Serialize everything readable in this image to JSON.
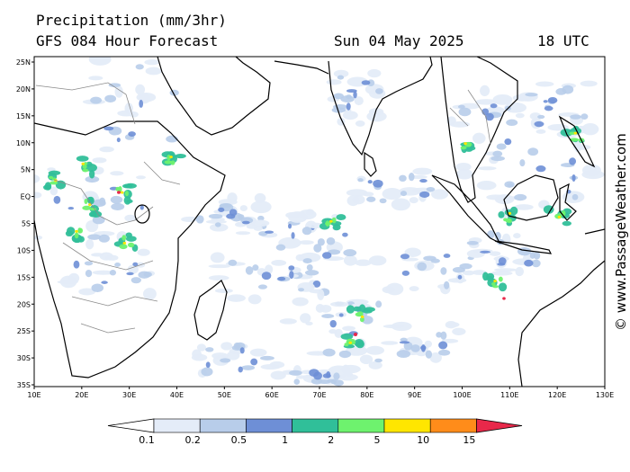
{
  "header": {
    "title": "Precipitation (mm/3hr)",
    "subtitle": "GFS 084 Hour Forecast",
    "date": "Sun 04 May 2025",
    "time": "18 UTC"
  },
  "credit": "© www.PassageWeather.com",
  "map": {
    "region": "Indian Ocean",
    "lon_range": [
      10,
      130
    ],
    "lat_range": [
      -35,
      25
    ],
    "x_ticks": [
      "10E",
      "20E",
      "30E",
      "40E",
      "50E",
      "60E",
      "70E",
      "80E",
      "90E",
      "100E",
      "110E",
      "120E",
      "130E"
    ],
    "y_ticks": [
      "25N",
      "20N",
      "15N",
      "10N",
      "5N",
      "EQ",
      "5S",
      "10S",
      "15S",
      "20S",
      "25S",
      "30S",
      "35S"
    ],
    "colors": {
      "land_line": "#000000",
      "border": "#8a8a8a",
      "ocean": "#ffffff"
    }
  },
  "legend": {
    "unit": "mm/3hr",
    "labels": [
      "0.1",
      "0.2",
      "0.5",
      "1",
      "2",
      "5",
      "10",
      "15"
    ],
    "colors": [
      "#ffffff",
      "#e4ecf8",
      "#b8cdea",
      "#6e8fd6",
      "#30bf99",
      "#6ef26e",
      "#ffe600",
      "#ff8c1a",
      "#e8284a"
    ]
  }
}
